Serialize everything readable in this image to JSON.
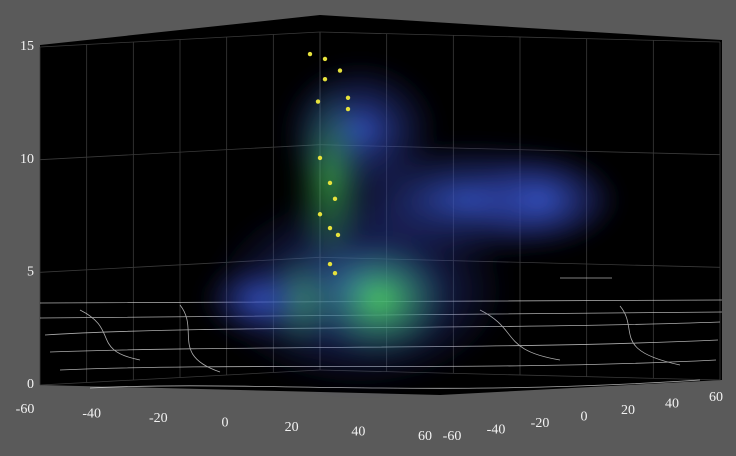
{
  "chart_data": {
    "type": "scatter3d",
    "xlim": [
      -60,
      60
    ],
    "ylim": [
      -60,
      60
    ],
    "zlim": [
      0,
      15
    ],
    "xticks": [
      -60,
      -40,
      -20,
      0,
      20,
      40,
      60
    ],
    "yticks": [
      -60,
      -40,
      -20,
      0,
      20,
      40,
      60
    ],
    "zticks": [
      0,
      5,
      10,
      15
    ],
    "grid": true,
    "series": [
      {
        "color": "#e6e23c",
        "x": [
          -21,
          -16.5,
          -12,
          -16.5,
          -18.6,
          -9.6,
          -9.6,
          -18,
          -15,
          -13.5,
          -18,
          -15,
          -12.6,
          -15,
          -13.5
        ],
        "y": [
          0,
          0,
          0,
          0,
          0,
          0,
          0,
          0,
          0,
          0,
          0,
          0,
          0,
          0,
          0
        ],
        "z": [
          14.5,
          14.3,
          13.8,
          13.4,
          12.4,
          12.6,
          12.1,
          9.9,
          8.8,
          8.1,
          7.4,
          6.8,
          6.5,
          5.2,
          4.8
        ]
      }
    ]
  }
}
